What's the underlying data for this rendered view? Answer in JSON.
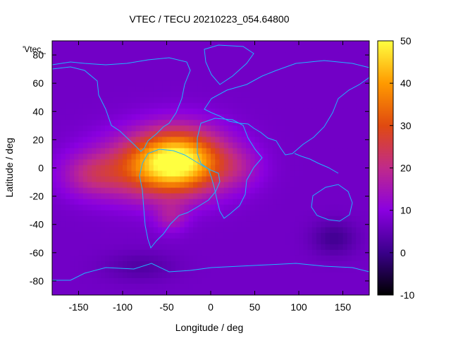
{
  "chart_data": {
    "type": "heatmap",
    "title": "VTEC / TECU 20210223_054.64800",
    "xlabel": "Longitude / deg",
    "ylabel": "Latitude / deg",
    "xlim": [
      -180,
      180
    ],
    "ylim": [
      -90,
      90
    ],
    "xticks": [
      "-150",
      "-100",
      "-50",
      "0",
      "50",
      "100",
      "150"
    ],
    "yticks": [
      "80",
      "60",
      "40",
      "20",
      "0",
      "-20",
      "-40",
      "-60",
      "-80"
    ],
    "xtick_values": [
      -150,
      -100,
      -50,
      0,
      50,
      100,
      150
    ],
    "ytick_values": [
      80,
      60,
      40,
      20,
      0,
      -20,
      -40,
      -60,
      -80
    ],
    "colorbar": {
      "range": [
        -10,
        50
      ],
      "ticks": [
        "50",
        "40",
        "30",
        "20",
        "10",
        "0",
        "-10"
      ],
      "tick_values": [
        50,
        40,
        30,
        20,
        10,
        0,
        -10
      ],
      "colors": [
        "#000000",
        "#3a008a",
        "#8a00e0",
        "#c02a8a",
        "#e04a10",
        "#ff9a00",
        "#ffff40"
      ]
    },
    "legend": "'Vtec_",
    "field": {
      "background": 7,
      "blobs": [
        {
          "lon": -35,
          "lat": 5,
          "sx": 50,
          "sy": 22,
          "amp": 38
        },
        {
          "lon": -75,
          "lat": 0,
          "sx": 60,
          "sy": 22,
          "amp": 16
        },
        {
          "lon": -135,
          "lat": -5,
          "sx": 35,
          "sy": 15,
          "amp": 10
        },
        {
          "lon": -45,
          "lat": -35,
          "sx": 18,
          "sy": 10,
          "amp": 8
        },
        {
          "lon": 30,
          "lat": 0,
          "sx": 30,
          "sy": 15,
          "amp": 6
        },
        {
          "lon": 140,
          "lat": -50,
          "sx": 25,
          "sy": 12,
          "amp": -6
        },
        {
          "lon": -80,
          "lat": -70,
          "sx": 40,
          "sy": 10,
          "amp": -4
        }
      ]
    }
  }
}
